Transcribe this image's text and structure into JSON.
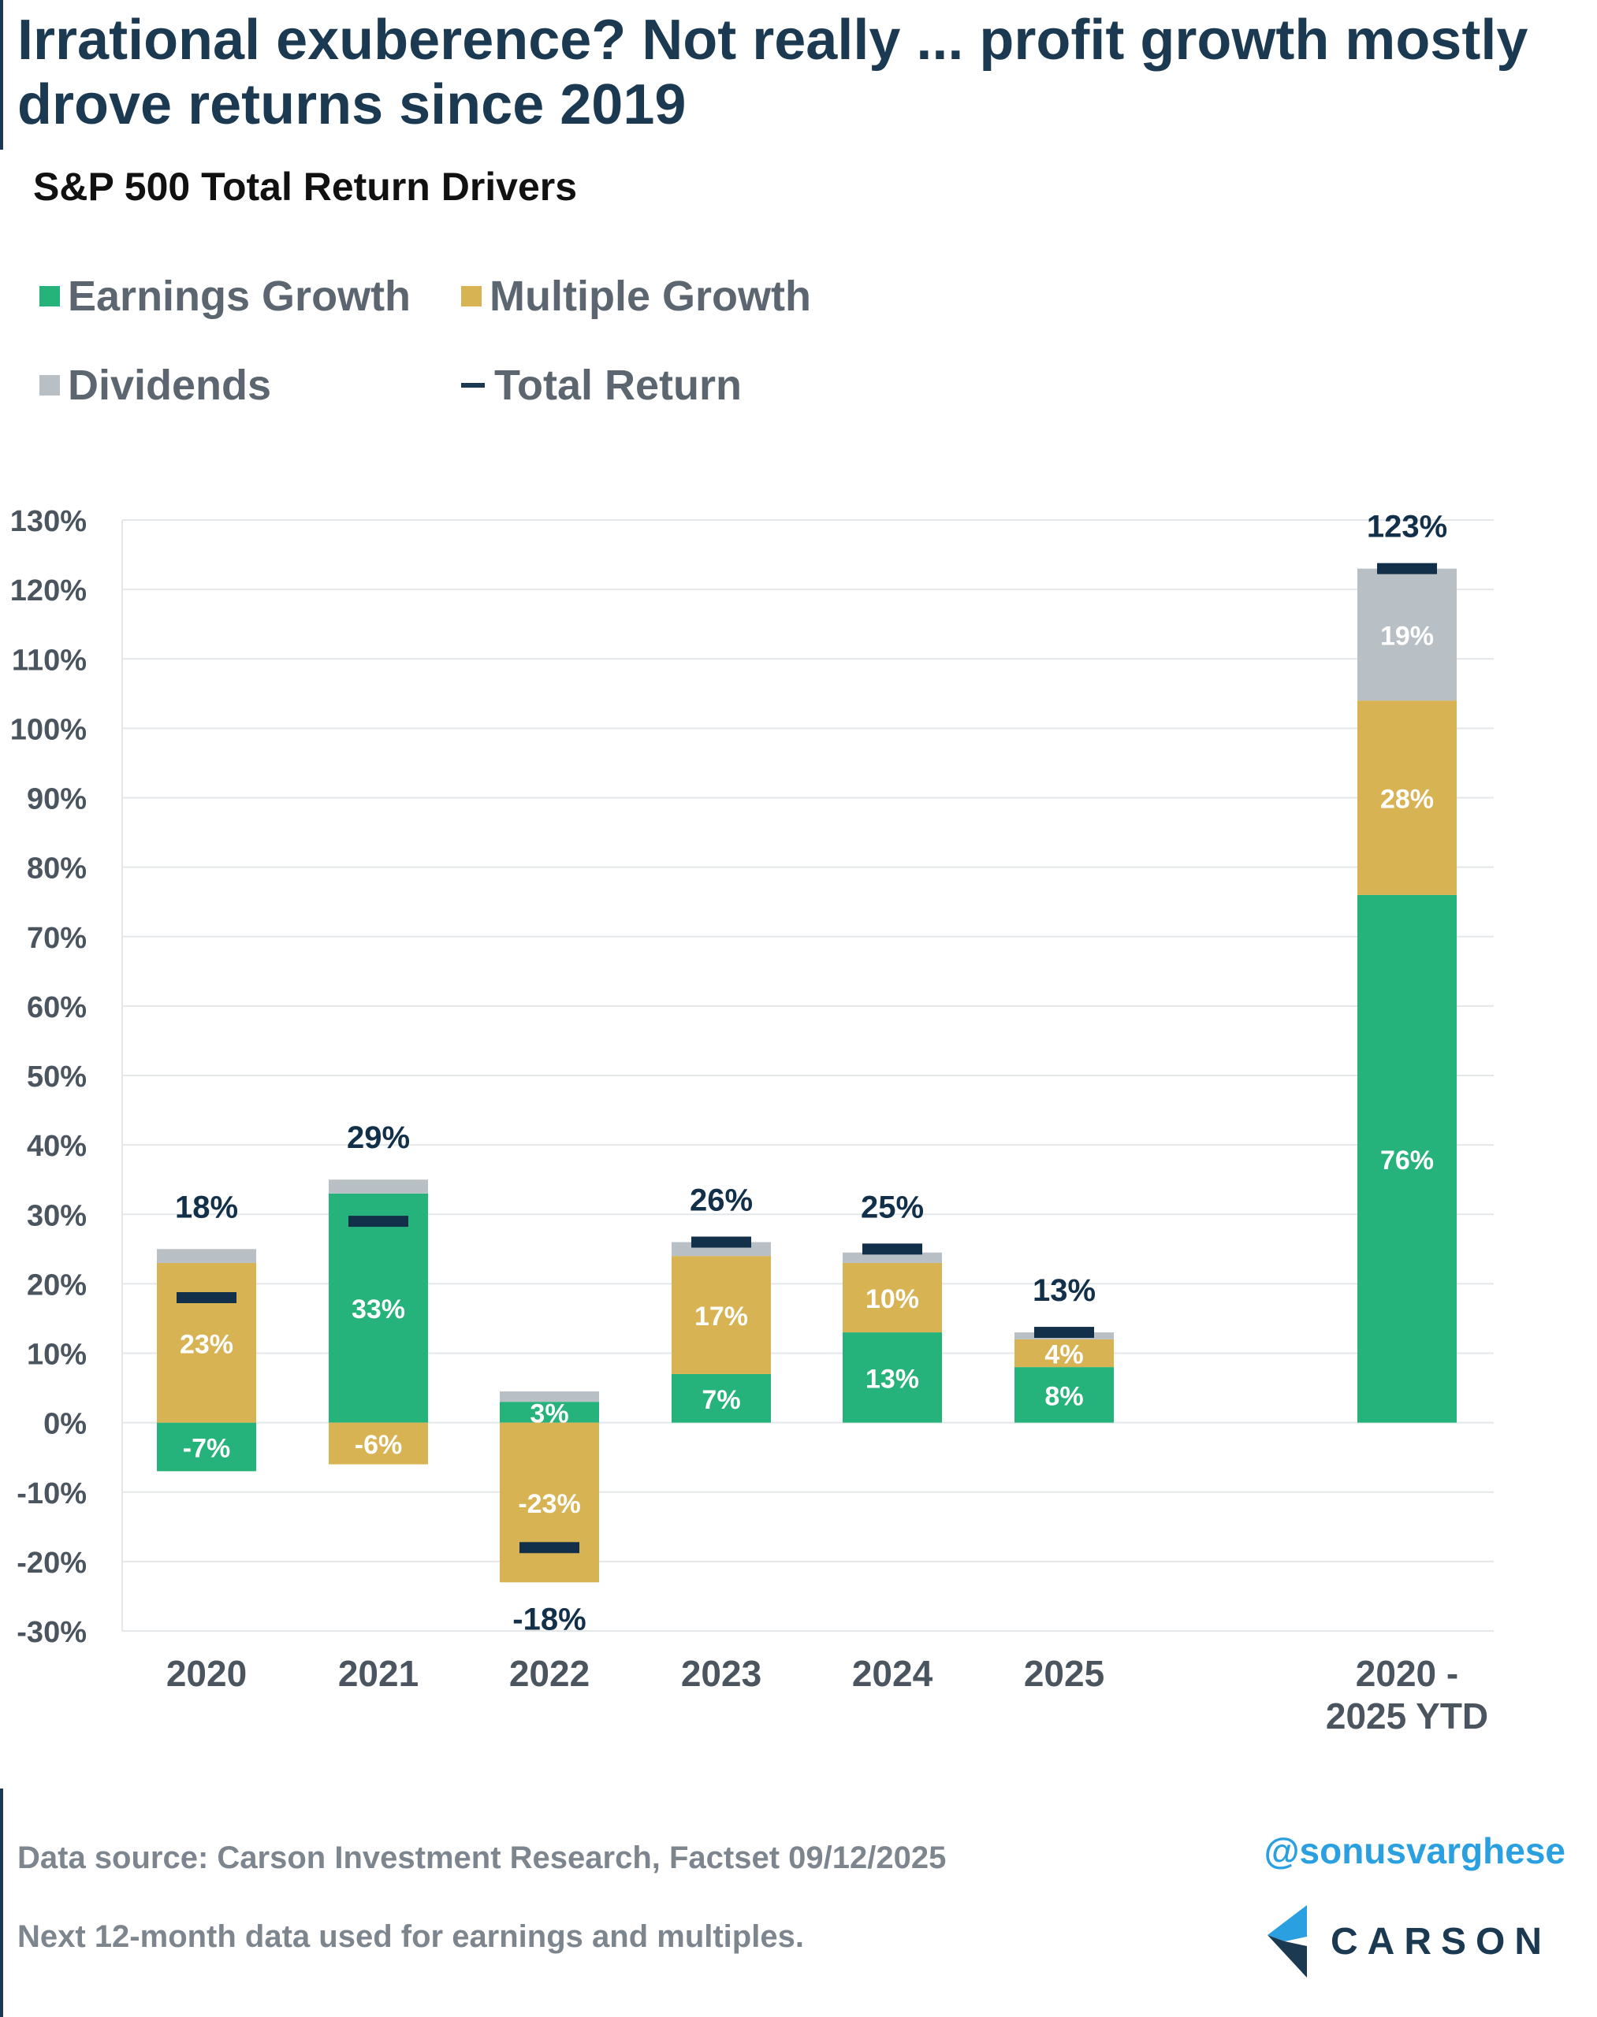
{
  "header": {
    "title": "Irrational exuberence? Not really ... profit growth mostly drove returns since 2019",
    "subtitle": "S&P 500 Total Return Drivers"
  },
  "legend": {
    "earnings": "Earnings Growth",
    "multiple": "Multiple Growth",
    "dividends": "Dividends",
    "total": "Total Return"
  },
  "colors": {
    "earnings": "#25b27b",
    "multiple": "#d8b354",
    "dividends": "#b8c0c6",
    "total": "#13304a",
    "grid": "#e4e7ea",
    "axis_text": "#4a5560",
    "label_text": "#ffffff"
  },
  "chart_data": {
    "type": "bar",
    "stacked": true,
    "categories": [
      "2020",
      "2021",
      "2022",
      "2023",
      "2024",
      "2025",
      "2020 - 2025 YTD"
    ],
    "series": [
      {
        "name": "Earnings Growth",
        "values": [
          -7,
          33,
          3,
          7,
          13,
          8,
          76
        ],
        "labels": [
          "-7%",
          "33%",
          "3%",
          "7%",
          "13%",
          "8%",
          "76%"
        ]
      },
      {
        "name": "Multiple Growth",
        "values": [
          23,
          -6,
          -23,
          17,
          10,
          4,
          28
        ],
        "labels": [
          "23%",
          "-6%",
          "-23%",
          "17%",
          "10%",
          "4%",
          "28%"
        ]
      },
      {
        "name": "Dividends",
        "values": [
          2,
          2,
          1.5,
          2,
          1.5,
          1,
          19
        ],
        "labels": [
          "",
          "",
          "",
          "",
          "",
          "",
          "19%"
        ]
      }
    ],
    "total_return": {
      "name": "Total Return",
      "values": [
        18,
        29,
        -18,
        26,
        25,
        13,
        123
      ],
      "labels": [
        "18%",
        "29%",
        "-18%",
        "26%",
        "25%",
        "13%",
        "123%"
      ]
    },
    "y_ticks": [
      "130%",
      "120%",
      "110%",
      "100%",
      "90%",
      "80%",
      "70%",
      "60%",
      "50%",
      "40%",
      "30%",
      "20%",
      "10%",
      "0%",
      "-10%",
      "-20%",
      "-30%"
    ],
    "ylim": [
      -30,
      130
    ],
    "grid": true,
    "legend_position": "top-left"
  },
  "footer": {
    "source": "Data source: Carson Investment Research, Factset   09/12/2025",
    "note": "Next 12-month data used for earnings and multiples.",
    "handle": "@sonusvarghese",
    "logo_text": "CARSON"
  }
}
